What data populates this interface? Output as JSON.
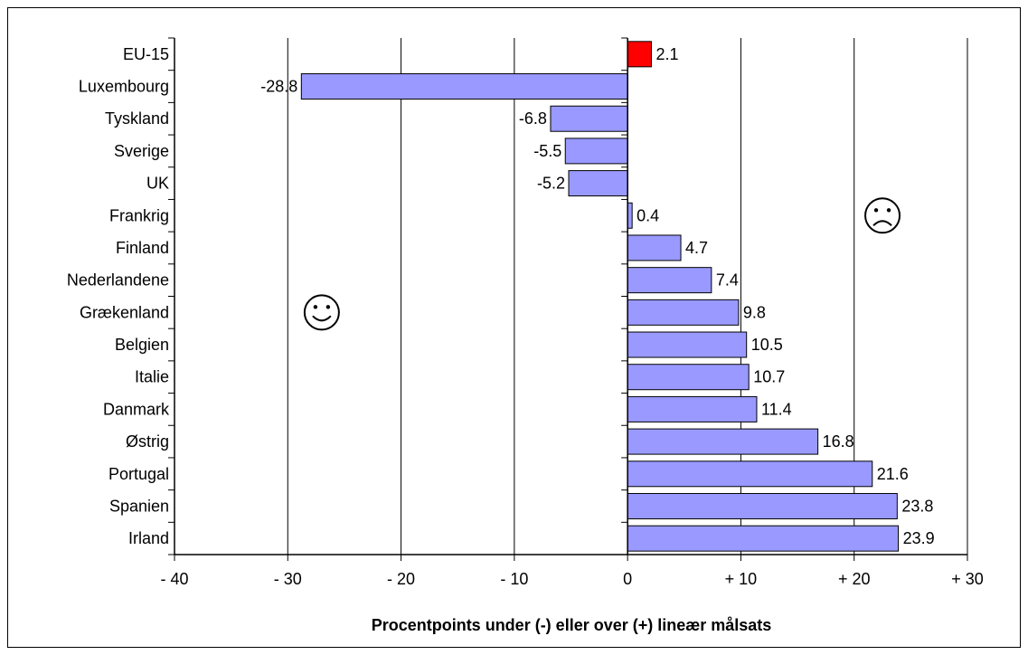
{
  "chart_data": {
    "type": "bar",
    "orientation": "horizontal",
    "categories": [
      "EU-15",
      "Luxembourg",
      "Tyskland",
      "Sverige",
      "UK",
      "Frankrig",
      "Finland",
      "Nederlandene",
      "Grækenland",
      "Belgien",
      "Italie",
      "Danmark",
      "Østrig",
      "Portugal",
      "Spanien",
      "Irland"
    ],
    "values": [
      2.1,
      -28.8,
      -6.8,
      -5.5,
      -5.2,
      0.4,
      4.7,
      7.4,
      9.8,
      10.5,
      10.7,
      11.4,
      16.8,
      21.6,
      23.8,
      23.9
    ],
    "data_labels": [
      "2.1",
      "-28.8",
      "-6.8",
      "-5.5",
      "-5.2",
      "0.4",
      "4.7",
      "7.4",
      "9.8",
      "10.5",
      "10.7",
      "11.4",
      "16.8",
      "21.6",
      "23.8",
      "23.9"
    ],
    "highlight_category": "EU-15",
    "xlim": [
      -40,
      30
    ],
    "xticks": [
      -40,
      -30,
      -20,
      -10,
      0,
      10,
      20,
      30
    ],
    "xtick_labels": [
      "- 40",
      "- 30",
      "- 20",
      "- 10",
      "0",
      "+ 10",
      "+ 20",
      "+ 30"
    ],
    "xlabel": "Procentpoints under (-) eller over (+) lineær målsats",
    "vertical_gridlines": true,
    "annotations": [
      {
        "symbol": "☺",
        "x": -27,
        "category": "Grækenland",
        "name": "happy-face"
      },
      {
        "symbol": "☹",
        "x": 22.5,
        "category": "Frankrig",
        "name": "sad-face"
      }
    ],
    "colors": {
      "bar": "#9999ff",
      "highlight": "#ff0000",
      "bar_stroke": "#000000"
    }
  }
}
